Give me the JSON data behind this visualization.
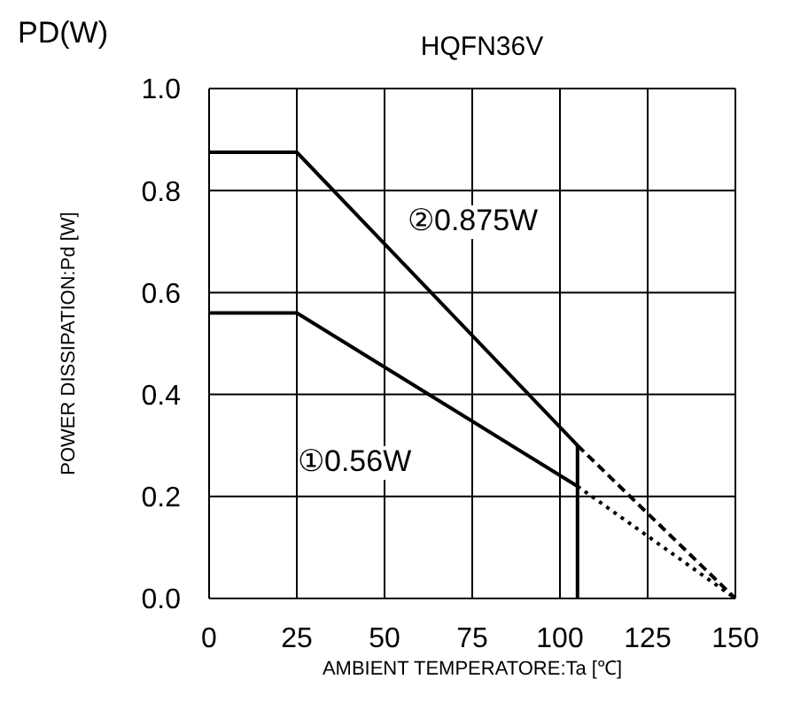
{
  "chart_data": {
    "type": "line",
    "title": "HQFN36V",
    "xlabel": "AMBIENT TEMPERATORE:Ta [℃]",
    "ylabel": "POWER DISSIPATION:Pd [W]",
    "annotations": [
      "PD(W)",
      "②0.875W",
      "①0.56W"
    ],
    "series": [
      {
        "color": "#000000",
        "x": [
          0,
          25,
          105
        ],
        "values": [
          0.875,
          0.875,
          0.3
        ],
        "line_style": "solid"
      },
      {
        "color": "#000000",
        "x": [
          105,
          150
        ],
        "values": [
          0.3,
          0
        ],
        "line_style": "dashed"
      },
      {
        "color": "#000000",
        "x": [
          0,
          25,
          105
        ],
        "values": [
          0.56,
          0.56,
          0.22
        ],
        "line_style": "solid"
      },
      {
        "color": "#000000",
        "x": [
          105,
          150
        ],
        "values": [
          0.22,
          0
        ],
        "line_style": "dotted"
      },
      {
        "color": "#000000",
        "x": [
          105,
          105
        ],
        "values": [
          0,
          0.3
        ],
        "line_style": "solid"
      }
    ],
    "xlim": [
      0,
      150
    ],
    "xticks": [
      0,
      25,
      50,
      75,
      100,
      125,
      150
    ],
    "ylim": [
      0,
      1
    ],
    "yticks": [
      {
        "value": 0,
        "label": "0.0"
      },
      {
        "value": 0.2,
        "label": "0.2"
      },
      {
        "value": 0.4,
        "label": "0.4"
      },
      {
        "value": 0.6,
        "label": "0.6"
      },
      {
        "value": 0.8,
        "label": "0.8"
      },
      {
        "value": 1,
        "label": "1.0"
      }
    ],
    "grid": true,
    "legend": false,
    "marker": "none"
  }
}
